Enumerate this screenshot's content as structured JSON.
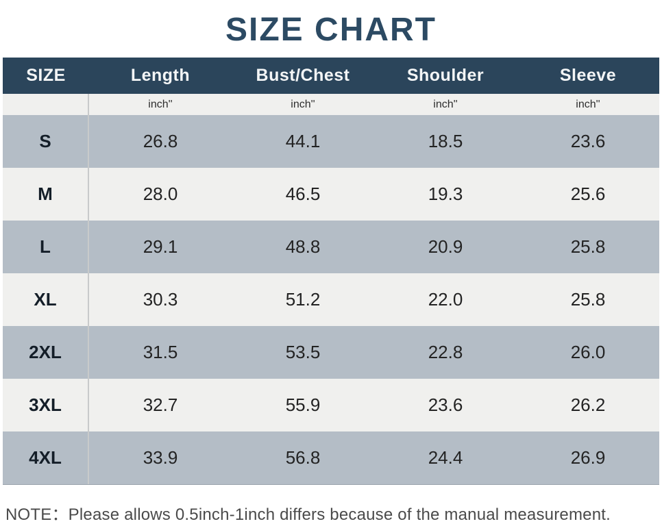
{
  "title": "SIZE CHART",
  "note": "NOTE：Please allows 0.5inch-1inch differs because of the manual measurement.",
  "colors": {
    "title_text": "#2c4a63",
    "header_bg": "#2b455b",
    "header_text": "#f3f5f6",
    "row_gray": "#b4bdc6",
    "row_light": "#f0f0ee",
    "divider": "#c8cacb",
    "note_text": "#4a4a4a"
  },
  "table": {
    "columns": [
      "SIZE",
      "Length",
      "Bust/Chest",
      "Shoulder",
      "Sleeve"
    ],
    "units": [
      "",
      "inch''",
      "inch''",
      "inch''",
      "inch''"
    ],
    "rows": [
      {
        "size": "S",
        "values": [
          "26.8",
          "44.1",
          "18.5",
          "23.6"
        ]
      },
      {
        "size": "M",
        "values": [
          "28.0",
          "46.5",
          "19.3",
          "25.6"
        ]
      },
      {
        "size": "L",
        "values": [
          "29.1",
          "48.8",
          "20.9",
          "25.8"
        ]
      },
      {
        "size": "XL",
        "values": [
          "30.3",
          "51.2",
          "22.0",
          "25.8"
        ]
      },
      {
        "size": "2XL",
        "values": [
          "31.5",
          "53.5",
          "22.8",
          "26.0"
        ]
      },
      {
        "size": "3XL",
        "values": [
          "32.7",
          "55.9",
          "23.6",
          "26.2"
        ]
      },
      {
        "size": "4XL",
        "values": [
          "33.9",
          "56.8",
          "24.4",
          "26.9"
        ]
      }
    ]
  },
  "chart_data": {
    "type": "table",
    "title": "SIZE CHART",
    "columns": [
      "SIZE",
      "Length",
      "Bust/Chest",
      "Shoulder",
      "Sleeve"
    ],
    "unit": "inch",
    "rows": [
      [
        "S",
        26.8,
        44.1,
        18.5,
        23.6
      ],
      [
        "M",
        28.0,
        46.5,
        19.3,
        25.6
      ],
      [
        "L",
        29.1,
        48.8,
        20.9,
        25.8
      ],
      [
        "XL",
        30.3,
        51.2,
        22.0,
        25.8
      ],
      [
        "2XL",
        31.5,
        53.5,
        22.8,
        26.0
      ],
      [
        "3XL",
        32.7,
        55.9,
        23.6,
        26.2
      ],
      [
        "4XL",
        33.9,
        56.8,
        24.4,
        26.9
      ]
    ],
    "note": "NOTE：Please allows 0.5inch-1inch differs because of the manual measurement."
  }
}
